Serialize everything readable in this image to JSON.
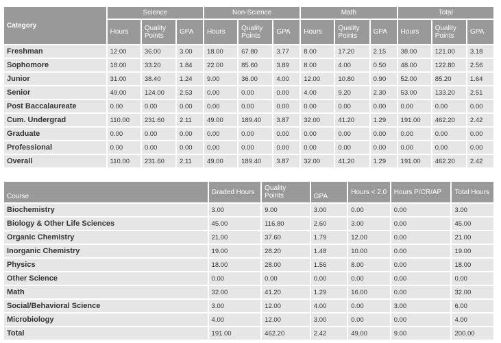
{
  "summary": {
    "category_header": "Category",
    "groups": [
      "Science",
      "Non-Science",
      "Math",
      "Total"
    ],
    "sub_headers": [
      "Hours",
      "Quality Points",
      "GPA"
    ],
    "rows": [
      {
        "label": "Freshman",
        "cells": [
          "12.00",
          "36.00",
          "3.00",
          "18.00",
          "67.80",
          "3.77",
          "8.00",
          "17.20",
          "2.15",
          "38.00",
          "121.00",
          "3.18"
        ]
      },
      {
        "label": "Sophomore",
        "cells": [
          "18.00",
          "33.20",
          "1.84",
          "22.00",
          "85.60",
          "3.89",
          "8.00",
          "4.00",
          "0.50",
          "48.00",
          "122.80",
          "2.56"
        ]
      },
      {
        "label": "Junior",
        "cells": [
          "31.00",
          "38.40",
          "1.24",
          "9.00",
          "36.00",
          "4.00",
          "12.00",
          "10.80",
          "0.90",
          "52.00",
          "85.20",
          "1.64"
        ]
      },
      {
        "label": "Senior",
        "cells": [
          "49.00",
          "124.00",
          "2.53",
          "0.00",
          "0.00",
          "0.00",
          "4.00",
          "9.20",
          "2.30",
          "53.00",
          "133.20",
          "2.51"
        ]
      },
      {
        "label": "Post Baccalaureate",
        "cells": [
          "0.00",
          "0.00",
          "0.00",
          "0.00",
          "0.00",
          "0.00",
          "0.00",
          "0.00",
          "0.00",
          "0.00",
          "0.00",
          "0.00"
        ]
      },
      {
        "label": "Cum. Undergrad",
        "cells": [
          "110.00",
          "231.60",
          "2.11",
          "49.00",
          "189.40",
          "3.87",
          "32.00",
          "41.20",
          "1.29",
          "191.00",
          "462.20",
          "2.42"
        ]
      },
      {
        "label": "Graduate",
        "cells": [
          "0.00",
          "0.00",
          "0.00",
          "0.00",
          "0.00",
          "0.00",
          "0.00",
          "0.00",
          "0.00",
          "0.00",
          "0.00",
          "0.00"
        ]
      },
      {
        "label": "Professional",
        "cells": [
          "0.00",
          "0.00",
          "0.00",
          "0.00",
          "0.00",
          "0.00",
          "0.00",
          "0.00",
          "0.00",
          "0.00",
          "0.00",
          "0.00"
        ]
      },
      {
        "label": "Overall",
        "cells": [
          "110.00",
          "231.60",
          "2.11",
          "49.00",
          "189.40",
          "3.87",
          "32.00",
          "41.20",
          "1.29",
          "191.00",
          "462.20",
          "2.42"
        ]
      }
    ]
  },
  "courses": {
    "headers": [
      "Course",
      "Graded Hours",
      "Quality Points",
      "GPA",
      "Hours < 2.0",
      "Hours P/CR/AP",
      "Total Hours"
    ],
    "rows": [
      {
        "label": "Biochemistry",
        "cells": [
          "3.00",
          "9.00",
          "3.00",
          "0.00",
          "0.00",
          "3.00"
        ]
      },
      {
        "label": "Biology & Other Life Sciences",
        "cells": [
          "45.00",
          "116.80",
          "2.60",
          "3.00",
          "0.00",
          "45.00"
        ]
      },
      {
        "label": "Organic Chemistry",
        "cells": [
          "21.00",
          "37.60",
          "1.79",
          "12.00",
          "0.00",
          "21.00"
        ]
      },
      {
        "label": "Inorganic Chemistry",
        "cells": [
          "19.00",
          "28.20",
          "1.48",
          "10.00",
          "0.00",
          "19.00"
        ]
      },
      {
        "label": "Physics",
        "cells": [
          "18.00",
          "28.00",
          "1.56",
          "8.00",
          "0.00",
          "18.00"
        ]
      },
      {
        "label": "Other Science",
        "cells": [
          "0.00",
          "0.00",
          "0.00",
          "0.00",
          "0.00",
          "0.00"
        ]
      },
      {
        "label": "Math",
        "cells": [
          "32.00",
          "41.20",
          "1.29",
          "16.00",
          "0.00",
          "32.00"
        ]
      },
      {
        "label": "Social/Behavioral Science",
        "cells": [
          "3.00",
          "12.00",
          "4.00",
          "0.00",
          "3.00",
          "6.00"
        ]
      },
      {
        "label": "Microbiology",
        "cells": [
          "4.00",
          "12.00",
          "3.00",
          "0.00",
          "0.00",
          "4.00"
        ]
      },
      {
        "label": "Total",
        "cells": [
          "191.00",
          "462.20",
          "2.42",
          "49.00",
          "9.00",
          "200.00"
        ]
      }
    ]
  }
}
